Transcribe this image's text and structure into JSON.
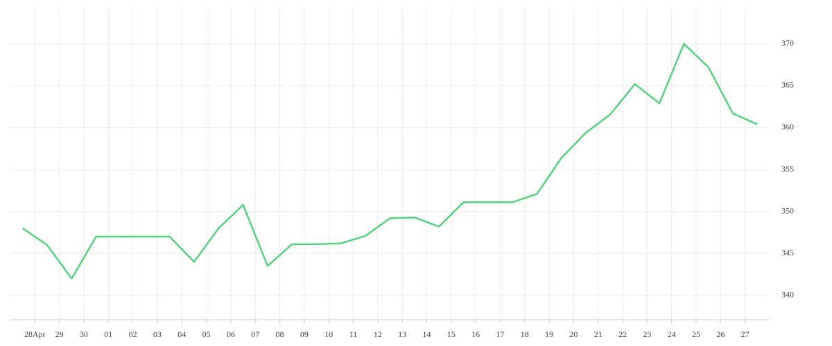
{
  "chart_data": {
    "type": "line",
    "x": [
      -0.5,
      0.5,
      1.5,
      2.5,
      3.5,
      4.5,
      5.5,
      6.5,
      7.5,
      8.5,
      9.5,
      10.5,
      11.5,
      12.5,
      13.5,
      14.5,
      15.5,
      16.5,
      17.5,
      18.5,
      19.5,
      20.5,
      21.5,
      22.5,
      23.5,
      24.5,
      25.5,
      26.5,
      27.5,
      28.5,
      29.5
    ],
    "series": [
      {
        "color": "#55d17f",
        "values": [
          348,
          346,
          342,
          347,
          347,
          347,
          347,
          344,
          348,
          350.8,
          343.5,
          346.1,
          346.1,
          346.2,
          347.1,
          349.2,
          349.3,
          348.2,
          351.1,
          351.1,
          351.1,
          352.1,
          356.4,
          359.4,
          361.6,
          365.2,
          362.9,
          370,
          367.2,
          361.7,
          360.4
        ]
      }
    ],
    "xlim": [
      -1,
      30
    ],
    "xticks": [
      {
        "value": 0,
        "label": "28Apr"
      },
      {
        "value": 1,
        "label": "29"
      },
      {
        "value": 2,
        "label": "30"
      },
      {
        "value": 3,
        "label": "01"
      },
      {
        "value": 4,
        "label": "02"
      },
      {
        "value": 5,
        "label": "03"
      },
      {
        "value": 6,
        "label": "04"
      },
      {
        "value": 7,
        "label": "05"
      },
      {
        "value": 8,
        "label": "06"
      },
      {
        "value": 9,
        "label": "07"
      },
      {
        "value": 10,
        "label": "08"
      },
      {
        "value": 11,
        "label": "09"
      },
      {
        "value": 12,
        "label": "10"
      },
      {
        "value": 13,
        "label": "11"
      },
      {
        "value": 14,
        "label": "12"
      },
      {
        "value": 15,
        "label": "13"
      },
      {
        "value": 16,
        "label": "14"
      },
      {
        "value": 17,
        "label": "15"
      },
      {
        "value": 18,
        "label": "16"
      },
      {
        "value": 19,
        "label": "17"
      },
      {
        "value": 20,
        "label": "18"
      },
      {
        "value": 21,
        "label": "19"
      },
      {
        "value": 22,
        "label": "20"
      },
      {
        "value": 23,
        "label": "21"
      },
      {
        "value": 24,
        "label": "22"
      },
      {
        "value": 25,
        "label": "23"
      },
      {
        "value": 26,
        "label": "24"
      },
      {
        "value": 27,
        "label": "25"
      },
      {
        "value": 28,
        "label": "26"
      },
      {
        "value": 29,
        "label": "27"
      }
    ],
    "ylim": [
      337.1,
      374.4
    ],
    "yticks": [
      340,
      345,
      350,
      355,
      360,
      365,
      370
    ],
    "grid": true
  }
}
